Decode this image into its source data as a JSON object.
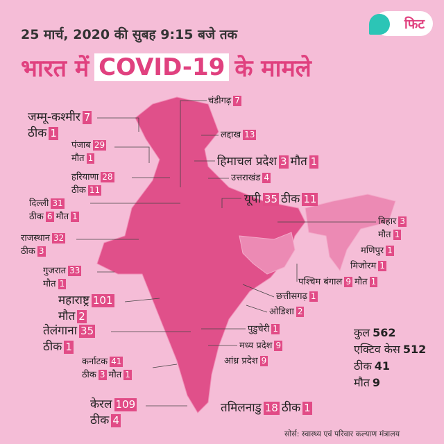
{
  "header": {
    "date": "25 मार्च, 2020 की सुबह 9:15 बजे तक",
    "title_parts": [
      "भारत में",
      "COVID-19",
      "के मामले"
    ],
    "logo": "फिट"
  },
  "labels": {
    "cured": "ठीक",
    "deaths": "मौत"
  },
  "states": [
    {
      "name": "जम्मू-कश्मीर",
      "cases": 7,
      "cured": 1
    },
    {
      "name": "पंजाब",
      "cases": 29,
      "deaths": 1
    },
    {
      "name": "हरियाणा",
      "cases": 28,
      "cured": 11
    },
    {
      "name": "दिल्ली",
      "cases": 31,
      "cured": 6,
      "deaths": 1
    },
    {
      "name": "राजस्थान",
      "cases": 32,
      "cured": 3
    },
    {
      "name": "गुजरात",
      "cases": 33,
      "deaths": 1
    },
    {
      "name": "महाराष्ट्र",
      "cases": 101,
      "deaths": 2
    },
    {
      "name": "तेलंगाना",
      "cases": 35,
      "cured": 1
    },
    {
      "name": "कर्नाटक",
      "cases": 41,
      "cured": 3,
      "deaths": 1
    },
    {
      "name": "केरल",
      "cases": 109,
      "cured": 4
    },
    {
      "name": "चंडीगढ़",
      "cases": 7
    },
    {
      "name": "लद्दाख",
      "cases": 13
    },
    {
      "name": "हिमाचल प्रदेश",
      "cases": 3,
      "deaths": 1
    },
    {
      "name": "उत्तराखंड",
      "cases": 4
    },
    {
      "name": "यूपी",
      "cases": 35,
      "cured": 11
    },
    {
      "name": "बिहार",
      "cases": 3,
      "deaths": 1
    },
    {
      "name": "मणिपुर",
      "cases": 1
    },
    {
      "name": "मिजोरम",
      "cases": 1
    },
    {
      "name": "पश्चिम बंगाल",
      "cases": 9,
      "deaths": 1
    },
    {
      "name": "छत्तीसगढ़",
      "cases": 1
    },
    {
      "name": "ओडिशा",
      "cases": 2
    },
    {
      "name": "पुडुचेरी",
      "cases": 1
    },
    {
      "name": "मध्य प्रदेश",
      "cases": 9
    },
    {
      "name": "आंध्र प्रदेश",
      "cases": 9
    },
    {
      "name": "तमिलनाडु",
      "cases": 18,
      "cured": 1
    }
  ],
  "totals": [
    {
      "label": "कुल",
      "value": 562
    },
    {
      "label": "एक्टिव केस",
      "value": 512
    },
    {
      "label": "ठीक",
      "value": 41
    },
    {
      "label": "मौत",
      "value": 9
    }
  ],
  "source": "सोर्स: स्वास्थ्य एवं परिवार कल्याण मंत्रालय"
}
